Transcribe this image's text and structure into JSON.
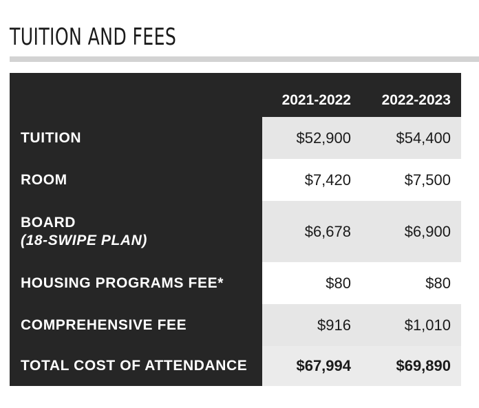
{
  "title": "TUITION AND FEES",
  "table": {
    "columns": [
      "2021-2022",
      "2022-2023"
    ],
    "rows": [
      {
        "label": "TUITION",
        "sublabel": "",
        "values": [
          "$52,900",
          "$54,400"
        ]
      },
      {
        "label": "ROOM",
        "sublabel": "",
        "values": [
          "$7,420",
          "$7,500"
        ]
      },
      {
        "label": "BOARD",
        "sublabel": "(18-SWIPE PLAN)",
        "values": [
          "$6,678",
          "$6,900"
        ]
      },
      {
        "label": "HOUSING PROGRAMS FEE*",
        "sublabel": "",
        "values": [
          "$80",
          "$80"
        ]
      },
      {
        "label": "COMPREHENSIVE FEE",
        "sublabel": "",
        "values": [
          "$916",
          "$1,010"
        ]
      }
    ],
    "total": {
      "label": "TOTAL COST OF ATTENDANCE",
      "values": [
        "$67,994",
        "$69,890"
      ]
    }
  },
  "colors": {
    "header_bg": "#262626",
    "shaded_cell": "#e6e6e6",
    "rule": "#d3d3d3"
  }
}
